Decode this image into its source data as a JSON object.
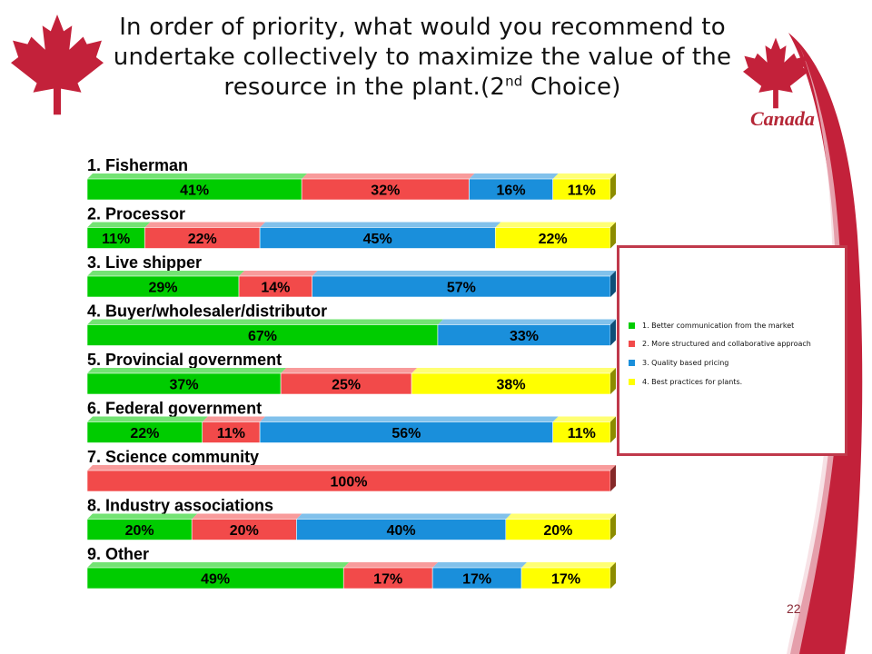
{
  "title": {
    "main": "In order of priority, what would you recommend to undertake collectively to maximize the value of the resource in the plant.(2",
    "sup": "nd",
    "tail": " Choice)"
  },
  "brand": "Canada",
  "page_number": "22",
  "colors": {
    "accent": "#c0394b",
    "s1": "#00cc00",
    "s2": "#f24a4a",
    "s3": "#1a8fdb",
    "s4": "#ffff00"
  },
  "chart_data": {
    "type": "bar",
    "stacked": true,
    "orientation": "horizontal",
    "categories": [
      "1. Fisherman",
      "2. Processor",
      "3. Live shipper",
      "4. Buyer/wholesaler/distributor",
      "5. Provincial government",
      "6. Federal government",
      "7. Science community",
      "8. Industry associations",
      "9. Other"
    ],
    "series": [
      {
        "name": "1. Better communication from the market",
        "color": "#00cc00",
        "values": [
          41,
          11,
          29,
          67,
          37,
          22,
          0,
          20,
          49
        ]
      },
      {
        "name": "2. More structured and collaborative approach",
        "color": "#f24a4a",
        "values": [
          32,
          22,
          14,
          0,
          25,
          11,
          100,
          20,
          17
        ]
      },
      {
        "name": "3. Quality based pricing",
        "color": "#1a8fdb",
        "values": [
          16,
          45,
          57,
          33,
          0,
          56,
          0,
          40,
          17
        ]
      },
      {
        "name": "4. Best practices for plants.",
        "color": "#ffff00",
        "values": [
          11,
          22,
          0,
          0,
          38,
          11,
          0,
          20,
          17
        ]
      }
    ],
    "legend_position": "right",
    "value_suffix": "%"
  }
}
